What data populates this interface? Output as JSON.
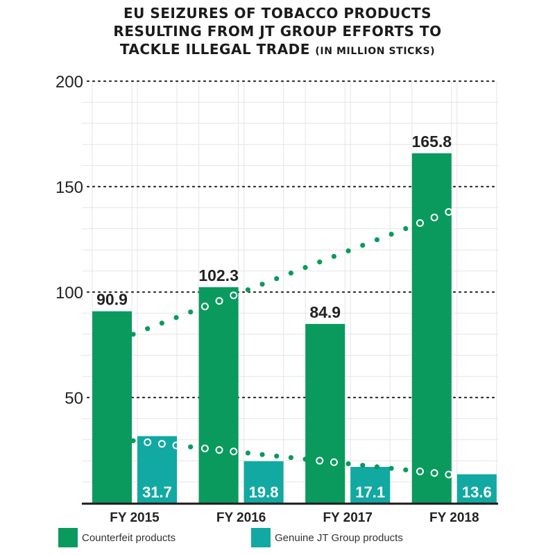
{
  "title": {
    "line1": "EU SEIZURES OF TOBACCO PRODUCTS",
    "line2": "RESULTING FROM JT GROUP EFFORTS TO",
    "line3": "TACKLE ILLEGAL TRADE",
    "unit": "(IN MILLION STICKS)"
  },
  "colors": {
    "counterfeit": "#0a9a5e",
    "genuine": "#11a9a2",
    "axis": "#1a1a1a",
    "grid": "#6e6e6e"
  },
  "chart_data": {
    "type": "bar",
    "title": "EU SEIZURES OF TOBACCO PRODUCTS RESULTING FROM JT GROUP EFFORTS TO TACKLE ILLEGAL TRADE (IN MILLION STICKS)",
    "categories": [
      "FY 2015",
      "FY 2016",
      "FY 2017",
      "FY 2018"
    ],
    "series": [
      {
        "name": "Counterfeit products",
        "values": [
          90.9,
          102.3,
          84.9,
          165.8
        ],
        "labels": [
          "90.9",
          "102.3",
          "84.9",
          "165.8"
        ]
      },
      {
        "name": "Genuine JT Group products",
        "values": [
          31.7,
          19.8,
          17.1,
          13.6
        ],
        "labels": [
          "31.7",
          "19.8",
          "17.1",
          "13.6"
        ]
      }
    ],
    "trend_lines": [
      {
        "name": "Counterfeit trend",
        "from": 80,
        "to": 138
      },
      {
        "name": "Genuine trend",
        "from": 29.5,
        "to": 13.5
      }
    ],
    "ylim": [
      0,
      200
    ],
    "yticks": [
      50,
      100,
      150,
      200
    ],
    "xlabel": "",
    "ylabel": "",
    "grid": true,
    "legend_position": "bottom"
  },
  "legend": [
    {
      "label": "Counterfeit products"
    },
    {
      "label": "Genuine JT Group products"
    }
  ]
}
